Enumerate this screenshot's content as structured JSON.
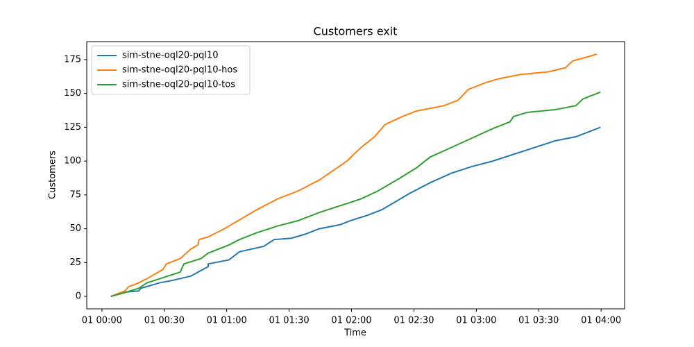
{
  "chart_data": {
    "type": "line",
    "title": "Customers exit",
    "xlabel": "Time",
    "ylabel": "Customers",
    "xlim": [
      -7.3,
      251.3
    ],
    "ylim": [
      -9.2,
      188.3
    ],
    "xticks": [
      {
        "value": 0,
        "label": "01 00:00"
      },
      {
        "value": 30,
        "label": "01 00:30"
      },
      {
        "value": 60,
        "label": "01 01:00"
      },
      {
        "value": 90,
        "label": "01 01:30"
      },
      {
        "value": 120,
        "label": "01 02:00"
      },
      {
        "value": 150,
        "label": "01 02:30"
      },
      {
        "value": 180,
        "label": "01 03:00"
      },
      {
        "value": 210,
        "label": "01 03:30"
      },
      {
        "value": 240,
        "label": "01 04:00"
      }
    ],
    "yticks": [
      0,
      25,
      50,
      75,
      100,
      125,
      150,
      175
    ],
    "legend": "upper left",
    "series": [
      {
        "name": "sim-stne-oql20-pql10",
        "color": "#1f77b4",
        "x": [
          4.3,
          9.3,
          17.7,
          18.7,
          27.7,
          34.4,
          42.7,
          51.1,
          51.1,
          61.1,
          66.1,
          77.8,
          82.8,
          91.1,
          97.8,
          104.5,
          114.5,
          119.5,
          127.8,
          134.5,
          141.2,
          147.8,
          157.8,
          167.9,
          177.9,
          187.9,
          197.9,
          207.9,
          217.9,
          227.9,
          239.7
        ],
        "values": [
          0,
          3,
          4,
          6,
          10,
          12,
          15,
          22,
          24,
          27,
          33,
          37,
          42,
          43,
          46,
          50,
          53,
          56,
          60,
          64,
          70,
          76,
          84,
          91,
          96,
          100,
          105,
          110,
          115,
          118,
          125
        ]
      },
      {
        "name": "sim-stne-oql20-pql10-hos",
        "color": "#ff7f0e",
        "x": [
          4.3,
          11.0,
          12.7,
          17.7,
          22.7,
          29.4,
          31.0,
          37.7,
          42.7,
          46.1,
          46.7,
          51.1,
          57.7,
          64.4,
          74.4,
          84.4,
          94.4,
          104.5,
          111.1,
          117.8,
          124.5,
          131.1,
          136.1,
          144.5,
          151.2,
          164.5,
          171.2,
          176.2,
          184.5,
          191.2,
          201.2,
          214.6,
          222.9,
          226.3,
          238.0
        ],
        "values": [
          0,
          4,
          7,
          10,
          14,
          20,
          24,
          28,
          35,
          38,
          42,
          44,
          49,
          55,
          64,
          72,
          78,
          86,
          93,
          100,
          110,
          118,
          127,
          133,
          137,
          141,
          145,
          153,
          158,
          161,
          164,
          166,
          169,
          174,
          179
        ]
      },
      {
        "name": "sim-stne-oql20-pql10-tos",
        "color": "#2ca02c",
        "x": [
          4.3,
          9.3,
          17.7,
          21.7,
          27.7,
          37.7,
          39.4,
          47.7,
          51.1,
          61.1,
          66.1,
          74.4,
          84.4,
          94.4,
          104.5,
          114.5,
          124.5,
          132.8,
          142.8,
          151.2,
          157.8,
          167.9,
          177.9,
          187.9,
          196.2,
          197.9,
          204.6,
          217.9,
          227.9,
          231.3,
          239.7
        ],
        "values": [
          0,
          2,
          6,
          10,
          13,
          18,
          24,
          28,
          32,
          38,
          42,
          47,
          52,
          56,
          62,
          67,
          72,
          78,
          87,
          95,
          103,
          110,
          117,
          124,
          129,
          133,
          136,
          138,
          141,
          146,
          151
        ]
      }
    ]
  }
}
